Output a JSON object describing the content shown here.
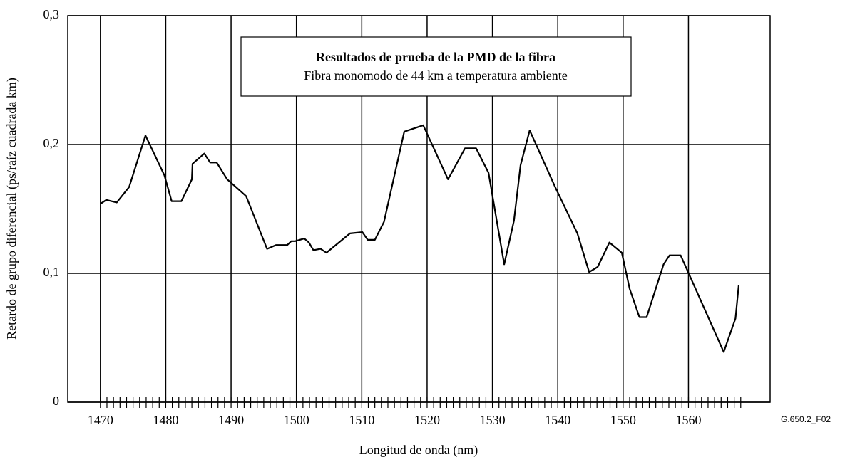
{
  "chart_data": {
    "type": "line",
    "title": "Resultados de prueba de la PMD de la fibra",
    "subtitle": "Fibra monomodo de 44 km a temperatura ambiente",
    "x_label": "Longitud de onda (nm)",
    "y_label": "Retardo de grupo diferencial (ps/raíz cuadrada km)",
    "figure_id": "G.650.2_F02",
    "x": [
      1470,
      1470.9,
      1472.5,
      1474.4,
      1476.9,
      1479.8,
      1480.9,
      1482.4,
      1484,
      1484.1,
      1485.9,
      1486.8,
      1487.8,
      1489.4,
      1492.3,
      1495.5,
      1496.9,
      1498.6,
      1499.2,
      1499.8,
      1501.2,
      1501.9,
      1502.6,
      1503.7,
      1504.6,
      1508.2,
      1510.1,
      1510.9,
      1512,
      1513.4,
      1516.5,
      1519.4,
      1523.2,
      1525.8,
      1527.5,
      1529.4,
      1531.8,
      1533.3,
      1534.3,
      1535.7,
      1539.6,
      1543,
      1544.8,
      1546.1,
      1547.9,
      1549.8,
      1551,
      1552.5,
      1553.6,
      1556.2,
      1557.1,
      1558.8,
      1565.4,
      1567.2,
      1567.7
    ],
    "series": [
      {
        "color": "#000000",
        "values": [
          0.154,
          0.157,
          0.155,
          0.167,
          0.207,
          0.176,
          0.156,
          0.156,
          0.173,
          0.185,
          0.193,
          0.186,
          0.186,
          0.173,
          0.16,
          0.119,
          0.122,
          0.122,
          0.125,
          0.125,
          0.127,
          0.124,
          0.118,
          0.119,
          0.116,
          0.131,
          0.132,
          0.126,
          0.126,
          0.14,
          0.21,
          0.215,
          0.173,
          0.197,
          0.197,
          0.178,
          0.107,
          0.141,
          0.184,
          0.211,
          0.167,
          0.131,
          0.101,
          0.105,
          0.124,
          0.116,
          0.088,
          0.066,
          0.066,
          0.107,
          0.114,
          0.114,
          0.039,
          0.065,
          0.091
        ]
      }
    ],
    "xlim": [
      1465,
      1572.5
    ],
    "ylim": [
      0,
      0.3
    ],
    "xticks": [
      1470,
      1480,
      1490,
      1500,
      1510,
      1520,
      1530,
      1540,
      1550,
      1560
    ],
    "xminorticks": [
      1470,
      1471,
      1472,
      1473,
      1474,
      1475,
      1476,
      1477,
      1478,
      1479,
      1480,
      1481,
      1482,
      1483,
      1484,
      1485,
      1486,
      1487,
      1488,
      1489,
      1490,
      1491,
      1492,
      1493,
      1494,
      1495,
      1496,
      1497,
      1498,
      1499,
      1500,
      1501,
      1502,
      1503,
      1504,
      1505,
      1506,
      1507,
      1508,
      1509,
      1510,
      1511,
      1512,
      1513,
      1514,
      1515,
      1516,
      1517,
      1518,
      1519,
      1520,
      1521,
      1522,
      1523,
      1524,
      1525,
      1526,
      1527,
      1528,
      1529,
      1530,
      1531,
      1532,
      1533,
      1534,
      1535,
      1536,
      1537,
      1538,
      1539,
      1540,
      1541,
      1542,
      1543,
      1544,
      1545,
      1546,
      1547,
      1548,
      1549,
      1550,
      1551,
      1552,
      1553,
      1554,
      1555,
      1556,
      1557,
      1558,
      1559,
      1560,
      1561,
      1562,
      1563,
      1564,
      1565,
      1566,
      1567,
      1568
    ],
    "yticks": [
      0,
      {
        "value": 0.1,
        "label": "0,1"
      },
      {
        "value": 0.2,
        "label": "0,2"
      },
      {
        "value": 0.3,
        "label": "0,3"
      }
    ],
    "grid": true
  }
}
